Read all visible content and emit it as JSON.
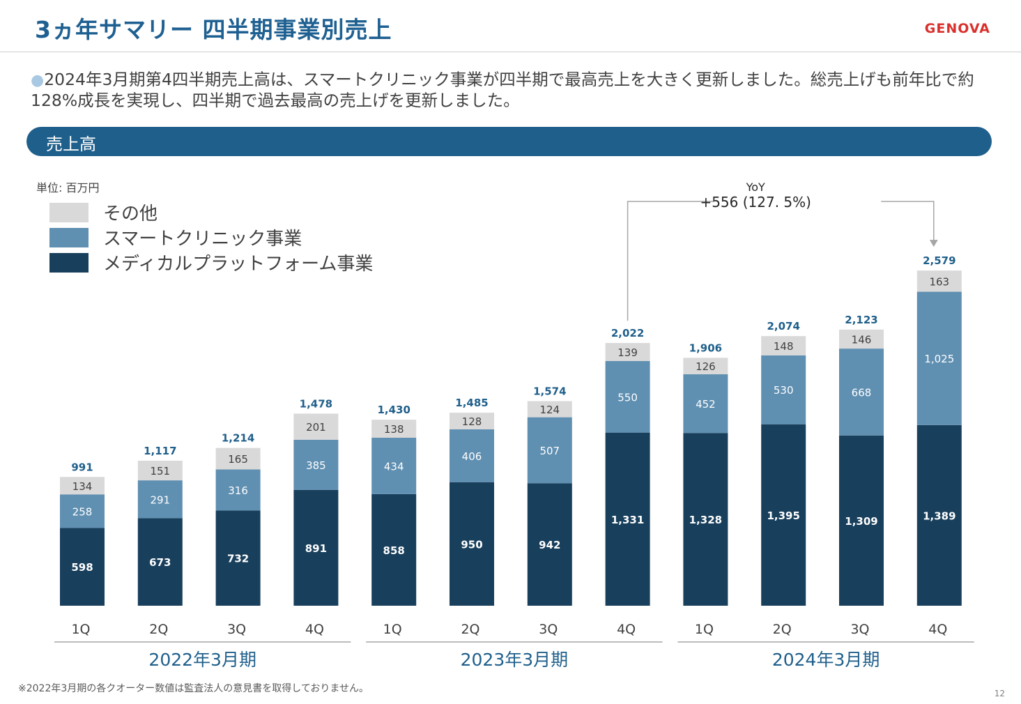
{
  "header": {
    "title": "3ヵ年サマリー 四半期事業別売上",
    "logo": "GENOVA"
  },
  "summary": {
    "bullet": "●",
    "text": "2024年3月期第4四半期売上高は、スマートクリニック事業が四半期で最高売上を大きく更新しました。総売上げも前年比で約128%成長を実現し、四半期で過去最高の売上げを更新しました。"
  },
  "section": {
    "label": "売上高"
  },
  "footer": {
    "note": "※2022年3月期の各クオーター数値は監査法人の意見書を取得しておりません。",
    "page": "12"
  },
  "colors": {
    "title": "#1e6091",
    "bar_bottom": "#183f5c",
    "bar_middle": "#5f8fb1",
    "bar_top": "#d9d9d9",
    "total_label": "#1f5f8b"
  },
  "chart_data": {
    "type": "bar",
    "stacked": true,
    "unit_label": "単位: 百万円",
    "categories": [
      "1Q",
      "2Q",
      "3Q",
      "4Q",
      "1Q",
      "2Q",
      "3Q",
      "4Q",
      "1Q",
      "2Q",
      "3Q",
      "4Q"
    ],
    "groups": [
      {
        "label": "2022年3月期",
        "count": 4
      },
      {
        "label": "2023年3月期",
        "count": 4
      },
      {
        "label": "2024年3月期",
        "count": 4
      }
    ],
    "series": [
      {
        "name": "メディカルプラットフォーム事業",
        "color": "#183f5c",
        "values": [
          598,
          673,
          732,
          891,
          858,
          950,
          942,
          1331,
          1328,
          1395,
          1309,
          1389
        ]
      },
      {
        "name": "スマートクリニック事業",
        "color": "#5f8fb1",
        "values": [
          258,
          291,
          316,
          385,
          434,
          406,
          507,
          550,
          452,
          530,
          668,
          1025
        ]
      },
      {
        "name": "その他",
        "color": "#d9d9d9",
        "values": [
          134,
          151,
          165,
          201,
          138,
          128,
          124,
          139,
          126,
          148,
          146,
          163
        ]
      }
    ],
    "totals": [
      991,
      1117,
      1214,
      1478,
      1430,
      1485,
      1574,
      2022,
      1906,
      2074,
      2123,
      2579
    ],
    "value_labels": [
      [
        "598",
        "673",
        "732",
        "891",
        "858",
        "950",
        "942",
        "1,331",
        "1,328",
        "1,395",
        "1,309",
        "1,389"
      ],
      [
        "258",
        "291",
        "316",
        "385",
        "434",
        "406",
        "507",
        "550",
        "452",
        "530",
        "668",
        "1,025"
      ],
      [
        "134",
        "151",
        "165",
        "201",
        "138",
        "128",
        "124",
        "139",
        "126",
        "148",
        "146",
        "163"
      ]
    ],
    "total_labels": [
      "991",
      "1,117",
      "1,214",
      "1,478",
      "1,430",
      "1,485",
      "1,574",
      "2,022",
      "1,906",
      "2,074",
      "2,123",
      "2,579"
    ],
    "legend": {
      "placement": "top-left",
      "order": [
        "その他",
        "スマートクリニック事業",
        "メディカルプラットフォーム事業"
      ]
    },
    "annotation": {
      "label_line1": "YoY",
      "label_line2": "+556 (127. 5%)",
      "from_bar": 7,
      "to_bar": 11
    },
    "ylim": [
      0,
      2700
    ],
    "grid": false
  }
}
